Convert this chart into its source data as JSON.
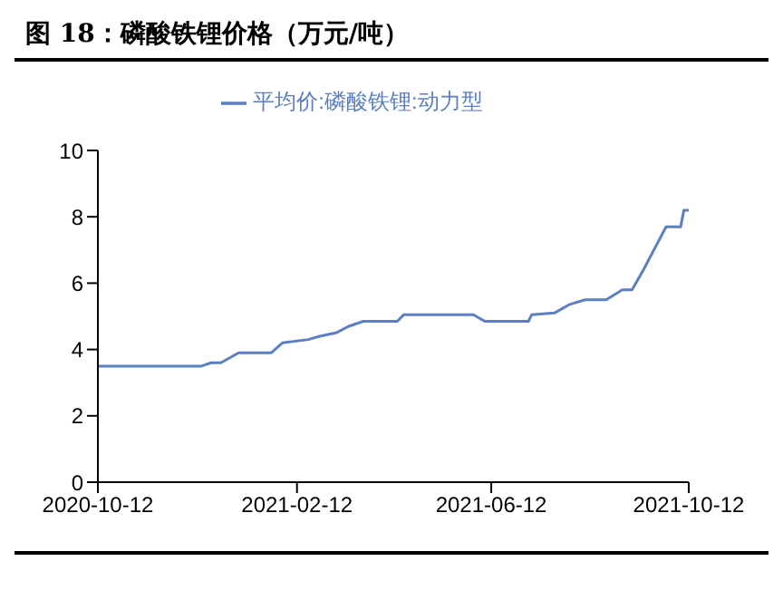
{
  "chart_data": {
    "type": "line",
    "title": "图 18：磷酸铁锂价格（万元/吨）",
    "x": [
      "2020-10-12",
      "2020-12-15",
      "2020-12-21",
      "2020-12-27",
      "2021-01-07",
      "2021-01-27",
      "2021-02-03",
      "2021-02-19",
      "2021-02-26",
      "2021-03-08",
      "2021-03-16",
      "2021-03-25",
      "2021-04-15",
      "2021-04-19",
      "2021-06-01",
      "2021-06-08",
      "2021-07-05",
      "2021-07-07",
      "2021-07-21",
      "2021-07-30",
      "2021-08-09",
      "2021-08-22",
      "2021-09-01",
      "2021-09-07",
      "2021-09-14",
      "2021-09-28",
      "2021-10-07",
      "2021-10-09",
      "2021-10-12"
    ],
    "series": [
      {
        "name": "平均价:磷酸铁锂:动力型",
        "color": "#5b7fbf",
        "values": [
          3.5,
          3.5,
          3.6,
          3.6,
          3.9,
          3.9,
          4.2,
          4.3,
          4.4,
          4.5,
          4.7,
          4.85,
          4.85,
          5.05,
          5.05,
          4.85,
          4.85,
          5.05,
          5.1,
          5.35,
          5.5,
          5.5,
          5.8,
          5.8,
          6.4,
          7.7,
          7.7,
          8.2,
          8.2
        ]
      }
    ],
    "xlim": [
      "2020-10-12",
      "2021-10-12"
    ],
    "xticks": [
      "2020-10-12",
      "2021-02-12",
      "2021-06-12",
      "2021-10-12"
    ],
    "ylim": [
      0,
      10
    ],
    "yticks": [
      0,
      2,
      4,
      6,
      8,
      10
    ],
    "grid": false,
    "legend": "top",
    "marker": "none",
    "line_style": "solid"
  }
}
